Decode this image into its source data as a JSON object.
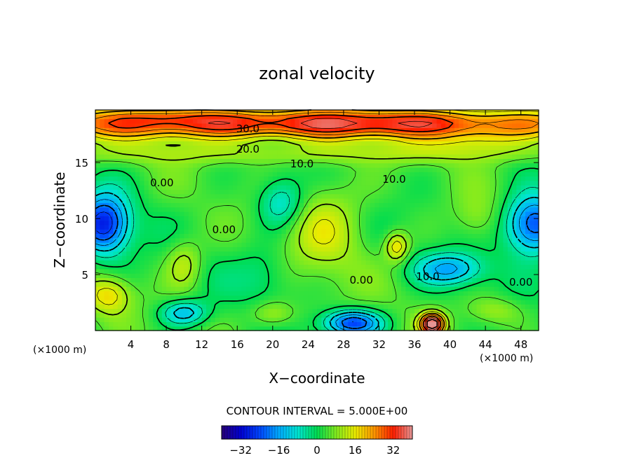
{
  "chart_data": {
    "type": "heatmap",
    "title": "zonal velocity",
    "xlabel": "X−coordinate",
    "ylabel": "Z−coordinate",
    "x_unit": "(×1000 m)",
    "y_unit": "(×1000 m)",
    "xlim": [
      0,
      50
    ],
    "ylim": [
      0,
      19.7
    ],
    "x_ticks": [
      "4",
      "8",
      "12",
      "16",
      "20",
      "24",
      "28",
      "32",
      "36",
      "40",
      "44",
      "48"
    ],
    "y_ticks": [
      "5",
      "10",
      "15"
    ],
    "x_tick_values": [
      4,
      8,
      12,
      16,
      20,
      24,
      28,
      32,
      36,
      40,
      44,
      48
    ],
    "y_tick_values": [
      5,
      10,
      15
    ],
    "contour_interval_text": "CONTOUR INTERVAL = 5.000E+00",
    "contour_labels": [
      {
        "text": "30.0",
        "x": 17.2,
        "y": 18.0
      },
      {
        "text": "20.0",
        "x": 17.2,
        "y": 16.2
      },
      {
        "text": "10.0",
        "x": 23.3,
        "y": 14.9
      },
      {
        "text": "10.0",
        "x": 33.7,
        "y": 13.5
      },
      {
        "text": "0.00",
        "x": 7.5,
        "y": 13.2
      },
      {
        "text": "0.00",
        "x": 14.5,
        "y": 9.0
      },
      {
        "text": "0.00",
        "x": 30.0,
        "y": 4.5
      },
      {
        "text": "10.0",
        "x": 37.5,
        "y": 4.8
      },
      {
        "text": "0.00",
        "x": 48.0,
        "y": 4.3
      }
    ],
    "colorbar": {
      "range": [
        -40,
        40
      ],
      "ticks": [
        "−32",
        "−16",
        "0",
        "16",
        "32"
      ],
      "tick_values": [
        -32,
        -16,
        0,
        16,
        32
      ]
    },
    "field_features": [
      {
        "x": 25,
        "y": 18.5,
        "sx": 40,
        "sy": 1.4,
        "v": 32
      },
      {
        "x": 10,
        "y": 19.3,
        "sx": 6,
        "sy": 0.9,
        "v": 6
      },
      {
        "x": 44,
        "y": 16.9,
        "sx": 5,
        "sy": 1.0,
        "v": 6
      },
      {
        "x": 25,
        "y": 15.8,
        "sx": 40,
        "sy": 0.9,
        "v": 7
      },
      {
        "x": 1,
        "y": 9.5,
        "sx": 2.8,
        "sy": 2.6,
        "v": -32
      },
      {
        "x": 49.5,
        "y": 9.5,
        "sx": 3.2,
        "sy": 2.6,
        "v": -30
      },
      {
        "x": 40,
        "y": 5.5,
        "sx": 3.8,
        "sy": 1.4,
        "v": -18
      },
      {
        "x": 29,
        "y": 0.7,
        "sx": 3.2,
        "sy": 1.1,
        "v": -28
      },
      {
        "x": 10,
        "y": 1.6,
        "sx": 2.6,
        "sy": 1.1,
        "v": -16
      },
      {
        "x": 38,
        "y": 0.6,
        "sx": 1.3,
        "sy": 0.9,
        "v": 42
      },
      {
        "x": 1.5,
        "y": 3.2,
        "sx": 2.4,
        "sy": 1.6,
        "v": 14
      },
      {
        "x": 10,
        "y": 6.0,
        "sx": 2.0,
        "sy": 2.2,
        "v": 10
      },
      {
        "x": 21,
        "y": 11.5,
        "sx": 2.6,
        "sy": 2.2,
        "v": -14
      },
      {
        "x": 34,
        "y": 7.5,
        "sx": 1.3,
        "sy": 1.3,
        "v": 16
      },
      {
        "x": 26,
        "y": 9.5,
        "sx": 4.5,
        "sy": 4.5,
        "v": 10
      },
      {
        "x": 19,
        "y": 5.0,
        "sx": 3.0,
        "sy": 2.5,
        "v": -6
      },
      {
        "x": 43,
        "y": 10.0,
        "sx": 2.5,
        "sy": 2.0,
        "v": 6
      },
      {
        "x": 20,
        "y": 1.5,
        "sx": 2.5,
        "sy": 1.2,
        "v": 10
      },
      {
        "x": 45,
        "y": 1.8,
        "sx": 3.0,
        "sy": 1.2,
        "v": 8
      }
    ]
  }
}
